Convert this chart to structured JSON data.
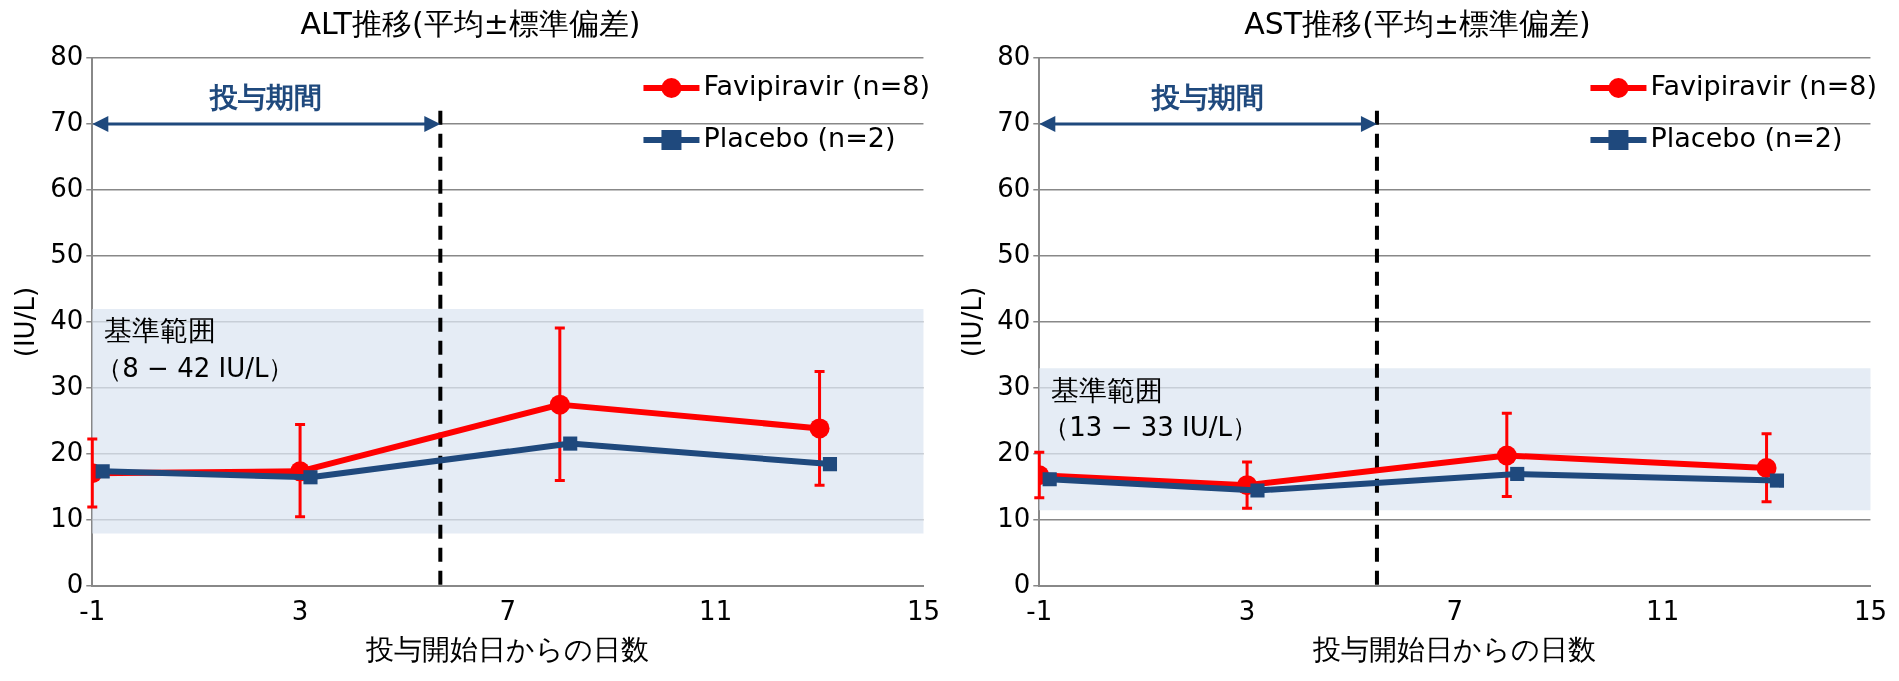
{
  "chart_data": [
    {
      "type": "line",
      "title": "ALT推移(平均±標準偏差)",
      "xlabel": "投与開始日からの日数",
      "ylabel": "(IU/L)",
      "xlim": [
        -1,
        15
      ],
      "xticks": [
        -1,
        3,
        7,
        11,
        15
      ],
      "ylim": [
        0,
        80
      ],
      "yticks": [
        0,
        10,
        20,
        30,
        40,
        50,
        60,
        70,
        80
      ],
      "grid": "y",
      "legend": "top right",
      "series": [
        {
          "name": "Favipiravir (n=8)",
          "color": "#ff0000",
          "marker": "circle",
          "x": [
            -1,
            3,
            8,
            13
          ],
          "values": [
            17.1,
            17.4,
            27.5,
            23.9
          ],
          "errors": [
            [
              12.0,
              22.3
            ],
            [
              10.5,
              24.5
            ],
            [
              16.0,
              39.1
            ],
            [
              15.3,
              32.5
            ]
          ]
        },
        {
          "name": "Placebo (n=2)",
          "color": "#1f497d",
          "marker": "square",
          "x": [
            -0.8,
            3.2,
            8.2,
            13.2
          ],
          "values": [
            17.4,
            16.5,
            21.6,
            18.5
          ]
        }
      ],
      "bands": [
        {
          "axis": "y",
          "from": 8,
          "to": 42,
          "label": "基準範囲",
          "color": "#dce6f2"
        }
      ],
      "ref_lines": [
        {
          "axis": "x",
          "value": 5.7,
          "label": null,
          "color": "#000000",
          "line_style": "dashed"
        }
      ],
      "annotations": [
        "投与期間",
        "（8 − 42 IU/L）"
      ]
    },
    {
      "type": "line",
      "title": "AST推移(平均±標準偏差)",
      "xlabel": "投与開始日からの日数",
      "ylabel": "(IU/L)",
      "xlim": [
        -1,
        15
      ],
      "xticks": [
        -1,
        3,
        7,
        11,
        15
      ],
      "ylim": [
        0,
        80
      ],
      "yticks": [
        0,
        10,
        20,
        30,
        40,
        50,
        60,
        70,
        80
      ],
      "grid": "y",
      "legend": "top right",
      "series": [
        {
          "name": "Favipiravir (n=8)",
          "color": "#ff0000",
          "marker": "circle",
          "x": [
            -1,
            3,
            8,
            13
          ],
          "values": [
            16.8,
            15.3,
            19.8,
            17.9
          ],
          "errors": [
            [
              13.4,
              20.3
            ],
            [
              11.8,
              18.8
            ],
            [
              13.6,
              26.2
            ],
            [
              12.8,
              23.1
            ]
          ]
        },
        {
          "name": "Placebo (n=2)",
          "color": "#1f497d",
          "marker": "square",
          "x": [
            -0.8,
            3.2,
            8.2,
            13.2
          ],
          "values": [
            16.2,
            14.5,
            17.0,
            16.0
          ]
        }
      ],
      "bands": [
        {
          "axis": "y",
          "from": 11.5,
          "to": 33,
          "label": "基準範囲",
          "color": "#dce6f2"
        }
      ],
      "ref_lines": [
        {
          "axis": "x",
          "value": 5.5,
          "label": null,
          "color": "#000000",
          "line_style": "dashed"
        }
      ],
      "annotations": [
        "投与期間",
        "（13 − 33 IU/L）"
      ]
    }
  ]
}
